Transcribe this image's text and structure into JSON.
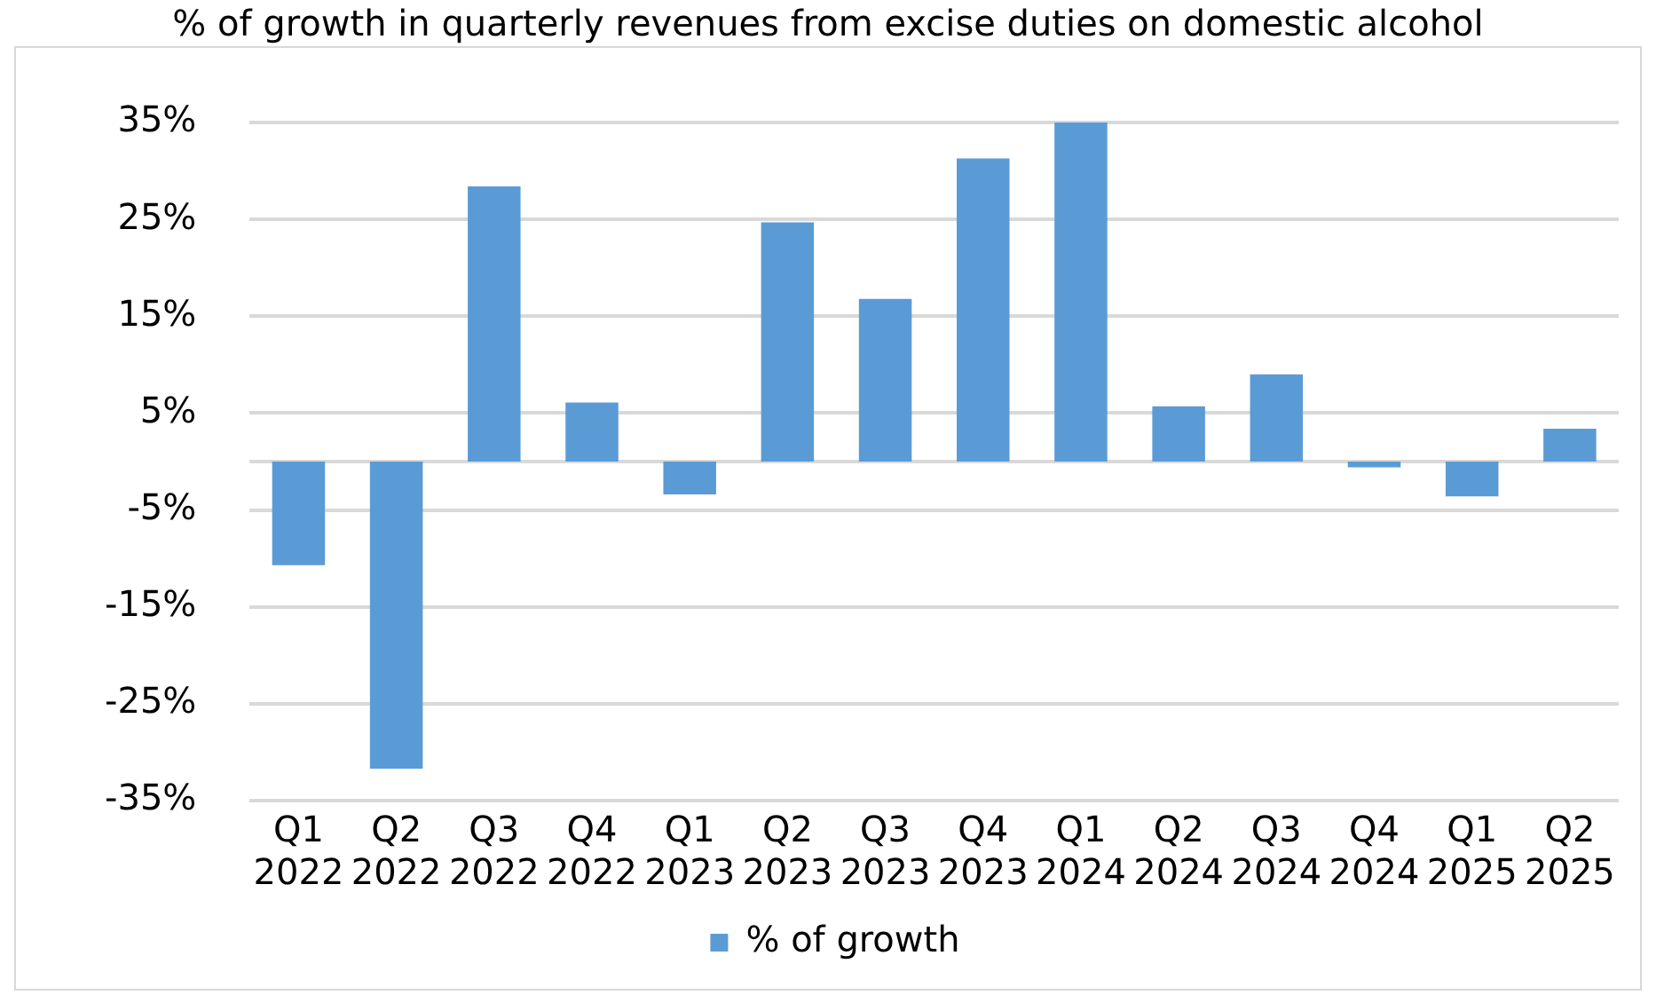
{
  "chart_data": {
    "type": "bar",
    "title": "% of growth in quarterly revenues from excise duties on domestic alcohol",
    "categories": [
      "Q1 2022",
      "Q2 2022",
      "Q3 2022",
      "Q4 2022",
      "Q1 2023",
      "Q2 2023",
      "Q3 2023",
      "Q4 2023",
      "Q1 2024",
      "Q2 2024",
      "Q3 2024",
      "Q4 2024",
      "Q1 2025",
      "Q2 2025"
    ],
    "series": [
      {
        "name": "% of growth",
        "color": "#5b9bd5",
        "values": [
          -10.7,
          -31.7,
          28.4,
          6.1,
          -3.4,
          24.7,
          16.8,
          31.3,
          35,
          5.7,
          9.0,
          -0.6,
          -3.6,
          3.4
        ]
      }
    ],
    "ylim": [
      -35,
      35
    ],
    "yticks": [
      {
        "value": -35,
        "label": "-35%"
      },
      {
        "value": -25,
        "label": "-25%"
      },
      {
        "value": -15,
        "label": "-15%"
      },
      {
        "value": -5,
        "label": "-5%"
      },
      {
        "value": 5,
        "label": "5%"
      },
      {
        "value": 15,
        "label": "15%"
      },
      {
        "value": 25,
        "label": "25%"
      },
      {
        "value": 35,
        "label": "35%"
      }
    ],
    "grid": "y",
    "legend": "bottom"
  }
}
